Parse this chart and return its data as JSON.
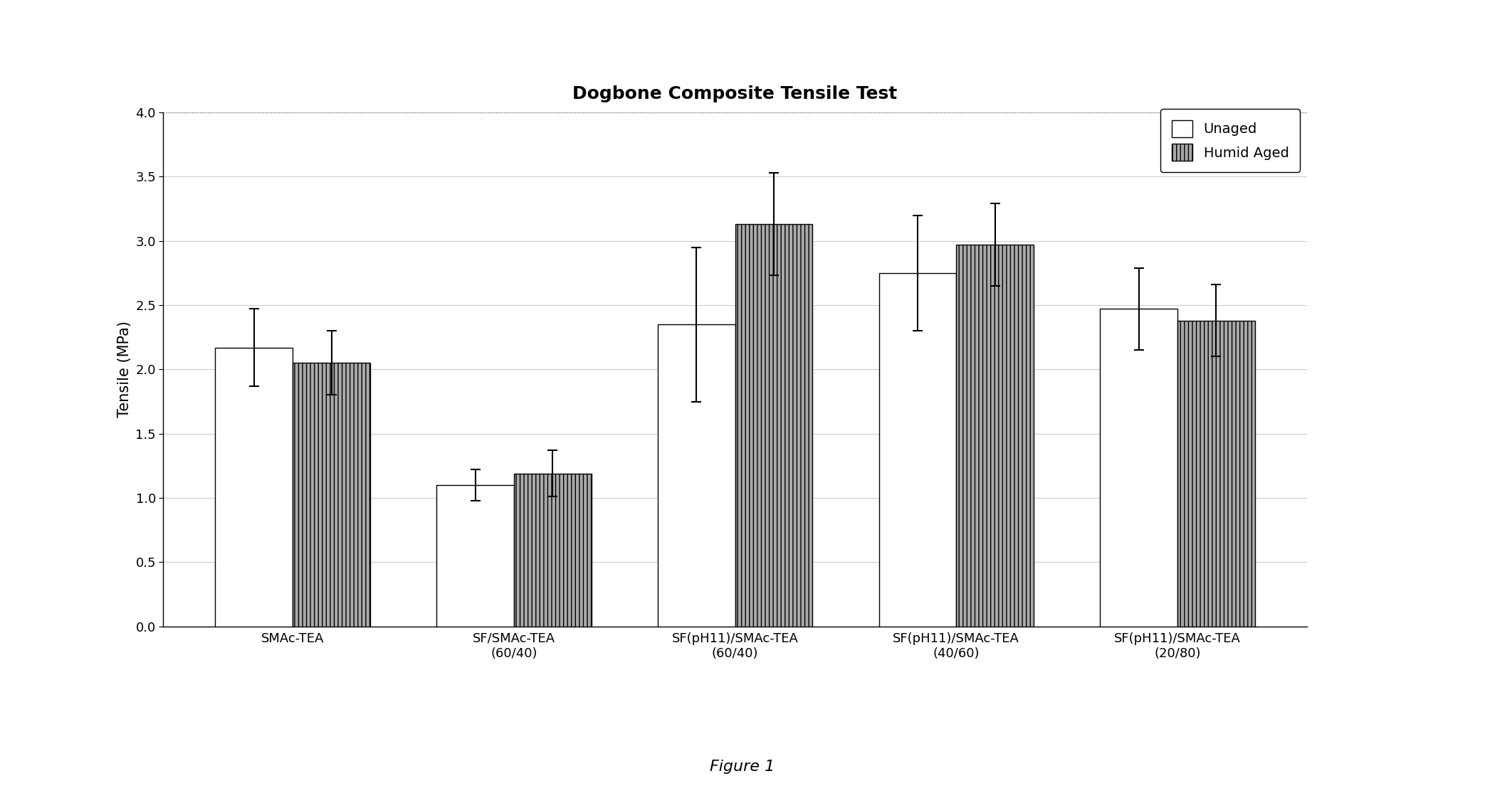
{
  "title": "Dogbone Composite Tensile Test",
  "ylabel": "Tensile (MPa)",
  "ylim": [
    0.0,
    4.0
  ],
  "yticks": [
    0.0,
    0.5,
    1.0,
    1.5,
    2.0,
    2.5,
    3.0,
    3.5,
    4.0
  ],
  "categories": [
    "SMAc-TEA",
    "SF/SMAc-TEA\n(60/40)",
    "SF(pH11)/SMAc-TEA\n(60/40)",
    "SF(pH11)/SMAc-TEA\n(40/60)",
    "SF(pH11)/SMAc-TEA\n(20/80)"
  ],
  "unaged_values": [
    2.17,
    1.1,
    2.35,
    2.75,
    2.47
  ],
  "humid_aged_values": [
    2.05,
    1.19,
    3.13,
    2.97,
    2.38
  ],
  "unaged_errors": [
    0.3,
    0.12,
    0.6,
    0.45,
    0.32
  ],
  "humid_aged_errors": [
    0.25,
    0.18,
    0.4,
    0.32,
    0.28
  ],
  "unaged_color": "#ffffff",
  "humid_aged_color": "#aaaaaa",
  "bar_edge_color": "#000000",
  "bar_width": 0.35,
  "legend_labels": [
    "Unaged",
    "Humid Aged"
  ],
  "figure_caption": "Figure 1",
  "background_color": "#ffffff",
  "title_fontsize": 18,
  "axis_fontsize": 15,
  "tick_fontsize": 13,
  "caption_fontsize": 16,
  "outer_box_color": "#000000"
}
